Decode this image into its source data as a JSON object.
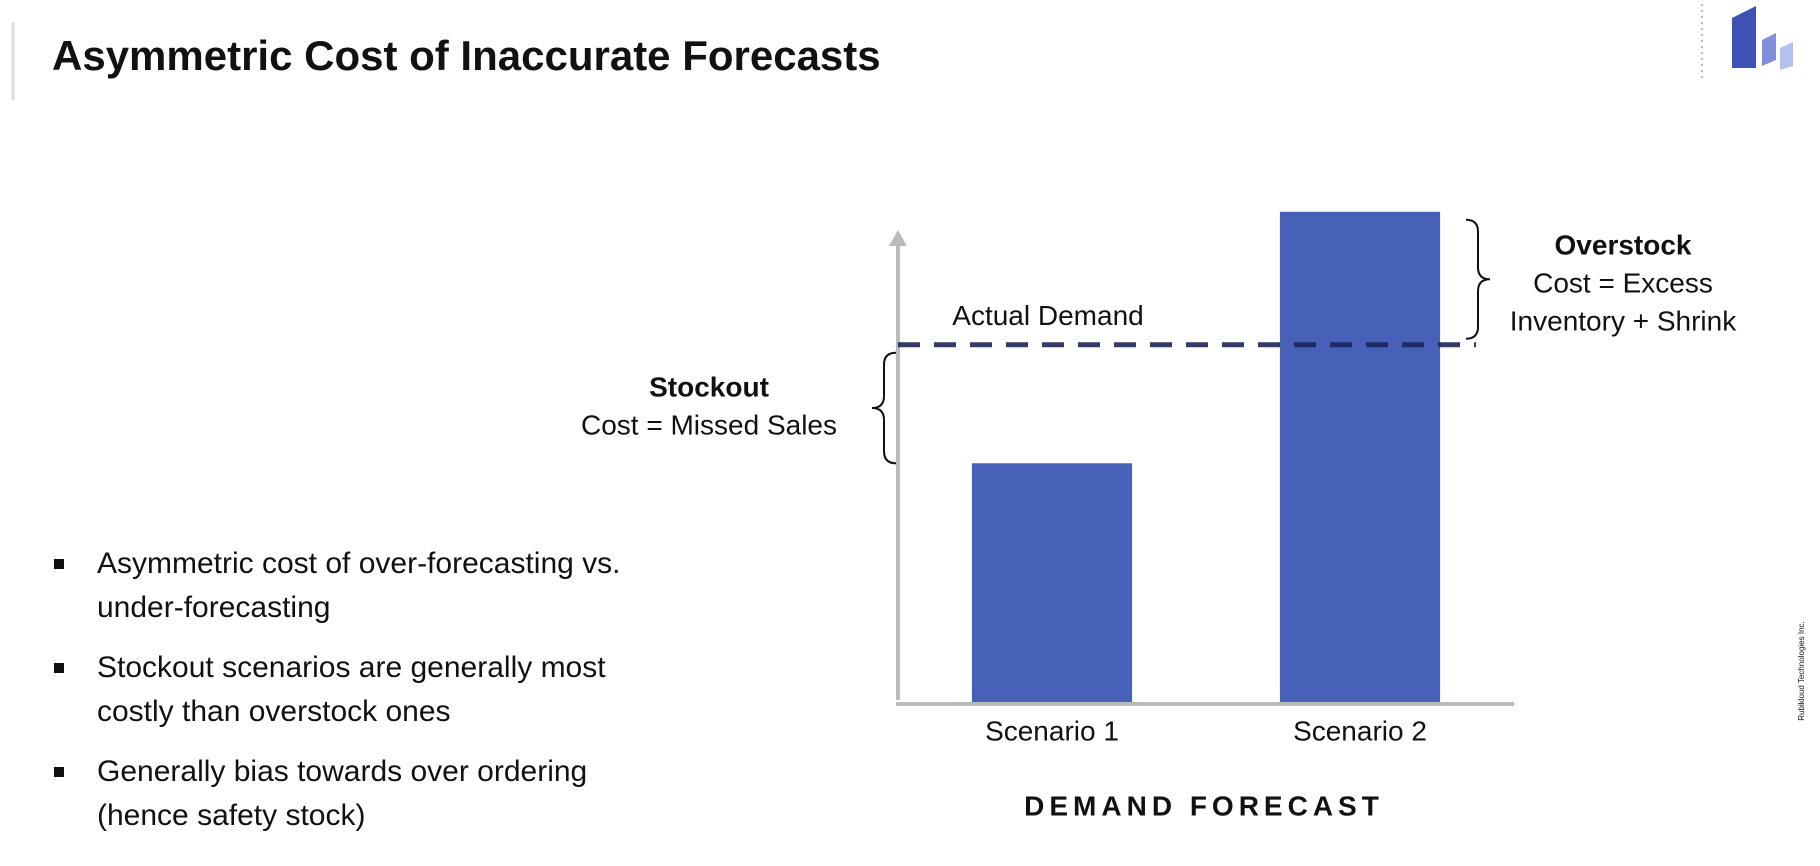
{
  "title": "Asymmetric Cost of Inaccurate Forecasts",
  "bullets": [
    [
      "Asymmetric cost of over-forecasting vs.",
      "under-forecasting"
    ],
    [
      "Stockout scenarios are generally most",
      "costly than overstock ones"
    ],
    [
      "Generally bias towards over ordering",
      "(hence safety stock)"
    ]
  ],
  "footer_text": "Rubikloud Technologies Inc.",
  "chart_data": {
    "type": "bar",
    "categories": [
      "Scenario 1",
      "Scenario 2"
    ],
    "values": [
      67,
      137
    ],
    "color": "#4761b9",
    "ylim": [
      0,
      140
    ],
    "xlabel": "DEMAND FORECAST",
    "reference_line": {
      "label": "Actual Demand",
      "value": 100,
      "color": "#1c2559"
    },
    "annotations": [
      {
        "title": "Stockout",
        "lines": [
          "Cost = Missed Sales"
        ]
      },
      {
        "title": "Overstock",
        "lines": [
          "Cost = Excess",
          "Inventory + Shrink"
        ]
      }
    ]
  }
}
